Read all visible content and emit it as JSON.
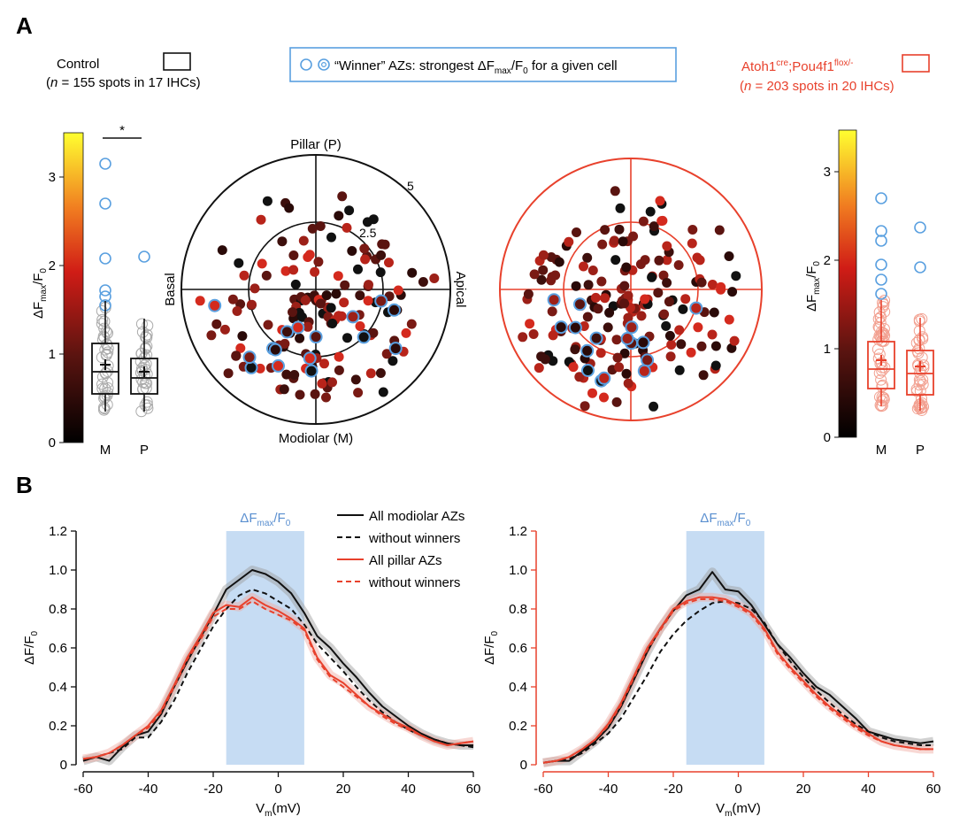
{
  "panel_labels": {
    "a": "A",
    "b": "B"
  },
  "legend": {
    "control_name": "Control",
    "control_n_pre": "(",
    "control_n_italic": "n",
    "control_n_post": " = 155 spots in 17 IHCs)",
    "winner_text_a": "“Winner” AZs: strongest ΔF",
    "winner_sub1": "max",
    "winner_text_b": "/F",
    "winner_sub2": "0",
    "winner_text_c": " for a given cell",
    "mutant_name_a": "Atoh1",
    "mutant_sup1": "cre",
    "mutant_name_b": ";Pou4f1",
    "mutant_sup2": "flox/-",
    "mutant_n_pre": "(",
    "mutant_n_italic": "n",
    "mutant_n_post": " = 203 spots in 20 IHCs)"
  },
  "colors": {
    "control": "#111111",
    "mutant": "#e8412c",
    "winner": "#5aa0e0",
    "shade": "#c6dcf3",
    "control_gray": "#999999",
    "mutant_light": "#f0a090"
  },
  "colorbar": {
    "ticks": [
      "0",
      "1",
      "2",
      "3"
    ],
    "ylabel_a": "ΔF",
    "ylabel_sub": "max",
    "ylabel_b": "/F",
    "ylabel_sub2": "0"
  },
  "polar": {
    "label_top": "Pillar (P)",
    "label_bottom": "Modiolar (M)",
    "label_left": "Basal",
    "label_right": "Apical",
    "ring_inner": "2.5",
    "ring_outer": "5"
  },
  "boxplots": {
    "categories": [
      "M",
      "P"
    ],
    "significance": "*",
    "control": {
      "M": {
        "q1": 0.55,
        "median": 0.8,
        "q3": 1.12,
        "mean": 0.88,
        "whisker_low": 0.35,
        "whisker_high": 1.6
      },
      "P": {
        "q1": 0.55,
        "median": 0.73,
        "q3": 0.95,
        "mean": 0.8,
        "whisker_low": 0.35,
        "whisker_high": 1.4
      },
      "outliers_M": [
        3.15,
        2.7,
        2.08,
        1.72,
        1.65,
        1.55
      ],
      "outliers_P": [
        2.1
      ]
    },
    "mutant": {
      "M": {
        "q1": 0.55,
        "median": 0.77,
        "q3": 1.08,
        "mean": 0.87,
        "whisker_low": 0.35,
        "whisker_high": 1.55
      },
      "P": {
        "q1": 0.48,
        "median": 0.72,
        "q3": 0.98,
        "mean": 0.8,
        "whisker_low": 0.3,
        "whisker_high": 1.35
      },
      "outliers_M": [
        2.7,
        2.33,
        2.22,
        1.95,
        1.78,
        1.62
      ],
      "outliers_P": [
        2.37,
        1.92
      ]
    }
  },
  "chart_data": [
    {
      "type": "line",
      "panel": "B-left (Control)",
      "xlabel_a": "V",
      "xlabel_sub": "m",
      "xlabel_b": "(mV)",
      "ylabel": "ΔF/F",
      "ylabel_sub": "0",
      "xlim": [
        -60,
        60
      ],
      "ylim": [
        0,
        1.2
      ],
      "xticks": [
        -60,
        -40,
        -20,
        0,
        20,
        40,
        60
      ],
      "yticks": [
        0,
        0.2,
        0.4,
        0.6,
        0.8,
        1.0,
        1.2
      ],
      "ytick_labels": [
        "0",
        "0.2",
        "0.4",
        "0.6",
        "0.8",
        "1.0",
        "1.2"
      ],
      "shaded_region": {
        "x0": -16,
        "x1": 8,
        "label_a": "ΔF",
        "label_sub": "max",
        "label_b": "/F",
        "label_sub2": "0"
      },
      "legend_entries": [
        "All modiolar AZs",
        "without winners",
        "All pillar AZs",
        "without winners"
      ],
      "x": [
        -60,
        -56,
        -52,
        -48,
        -44,
        -40,
        -36,
        -32,
        -28,
        -24,
        -20,
        -16,
        -12,
        -8,
        -4,
        0,
        4,
        8,
        12,
        16,
        20,
        24,
        28,
        32,
        36,
        40,
        44,
        48,
        52,
        56,
        60
      ],
      "series": [
        {
          "name": "All modiolar AZs",
          "style": "solid",
          "color": "#111111",
          "values": [
            0.02,
            0.04,
            0.02,
            0.09,
            0.15,
            0.17,
            0.26,
            0.4,
            0.53,
            0.65,
            0.77,
            0.9,
            0.95,
            1.0,
            0.98,
            0.94,
            0.88,
            0.78,
            0.66,
            0.6,
            0.52,
            0.45,
            0.37,
            0.3,
            0.25,
            0.2,
            0.16,
            0.13,
            0.11,
            0.1,
            0.1
          ]
        },
        {
          "name": "without winners",
          "style": "dashed",
          "color": "#111111",
          "values": [
            0.02,
            0.04,
            0.06,
            0.08,
            0.14,
            0.14,
            0.22,
            0.33,
            0.47,
            0.59,
            0.71,
            0.8,
            0.87,
            0.9,
            0.88,
            0.84,
            0.8,
            0.72,
            0.62,
            0.55,
            0.48,
            0.4,
            0.33,
            0.27,
            0.22,
            0.18,
            0.15,
            0.13,
            0.11,
            0.1,
            0.09
          ]
        },
        {
          "name": "All pillar AZs",
          "style": "solid",
          "color": "#e8412c",
          "values": [
            0.03,
            0.04,
            0.06,
            0.1,
            0.15,
            0.2,
            0.28,
            0.41,
            0.55,
            0.66,
            0.78,
            0.82,
            0.81,
            0.86,
            0.82,
            0.79,
            0.75,
            0.7,
            0.55,
            0.46,
            0.42,
            0.36,
            0.3,
            0.26,
            0.22,
            0.19,
            0.15,
            0.12,
            0.1,
            0.11,
            0.12
          ]
        },
        {
          "name": "without winners",
          "style": "dashed",
          "color": "#e8412c",
          "values": [
            0.03,
            0.04,
            0.06,
            0.1,
            0.15,
            0.19,
            0.27,
            0.4,
            0.54,
            0.64,
            0.76,
            0.8,
            0.8,
            0.84,
            0.8,
            0.77,
            0.74,
            0.69,
            0.54,
            0.45,
            0.4,
            0.35,
            0.3,
            0.25,
            0.21,
            0.18,
            0.15,
            0.12,
            0.1,
            0.11,
            0.12
          ]
        }
      ]
    },
    {
      "type": "line",
      "panel": "B-right (Atoh1cre;Pou4f1flox/-)",
      "xlabel_a": "V",
      "xlabel_sub": "m",
      "xlabel_b": "(mV)",
      "ylabel": "ΔF/F",
      "ylabel_sub": "0",
      "xlim": [
        -60,
        60
      ],
      "ylim": [
        0,
        1.2
      ],
      "xticks": [
        -60,
        -40,
        -20,
        0,
        20,
        40,
        60
      ],
      "yticks": [
        0,
        0.2,
        0.4,
        0.6,
        0.8,
        1.0,
        1.2
      ],
      "ytick_labels": [
        "0",
        "0.2",
        "0.4",
        "0.6",
        "0.8",
        "1.0",
        "1.2"
      ],
      "shaded_region": {
        "x0": -16,
        "x1": 8,
        "label_a": "ΔF",
        "label_sub": "max",
        "label_b": "/F",
        "label_sub2": "0"
      },
      "x": [
        -60,
        -56,
        -52,
        -48,
        -44,
        -40,
        -36,
        -32,
        -28,
        -24,
        -20,
        -16,
        -12,
        -8,
        -4,
        0,
        4,
        8,
        12,
        16,
        20,
        24,
        28,
        32,
        36,
        40,
        44,
        48,
        52,
        56,
        60
      ],
      "series": [
        {
          "name": "All modiolar AZs",
          "style": "solid",
          "color": "#111111",
          "values": [
            0.01,
            0.02,
            0.02,
            0.07,
            0.12,
            0.19,
            0.3,
            0.44,
            0.58,
            0.7,
            0.79,
            0.87,
            0.9,
            0.99,
            0.9,
            0.89,
            0.82,
            0.72,
            0.62,
            0.55,
            0.47,
            0.4,
            0.36,
            0.3,
            0.24,
            0.17,
            0.15,
            0.13,
            0.12,
            0.11,
            0.12
          ]
        },
        {
          "name": "without winners",
          "style": "dashed",
          "color": "#111111",
          "values": [
            0.01,
            0.02,
            0.03,
            0.06,
            0.11,
            0.16,
            0.24,
            0.35,
            0.46,
            0.58,
            0.67,
            0.74,
            0.79,
            0.83,
            0.84,
            0.83,
            0.8,
            0.73,
            0.62,
            0.53,
            0.45,
            0.38,
            0.32,
            0.26,
            0.21,
            0.17,
            0.14,
            0.12,
            0.11,
            0.1,
            0.1
          ]
        },
        {
          "name": "All pillar AZs",
          "style": "solid",
          "color": "#e8412c",
          "values": [
            0.01,
            0.02,
            0.04,
            0.08,
            0.13,
            0.21,
            0.32,
            0.46,
            0.6,
            0.7,
            0.8,
            0.84,
            0.86,
            0.86,
            0.85,
            0.82,
            0.78,
            0.7,
            0.58,
            0.5,
            0.43,
            0.36,
            0.3,
            0.25,
            0.2,
            0.16,
            0.12,
            0.1,
            0.09,
            0.08,
            0.08
          ]
        },
        {
          "name": "without winners",
          "style": "dashed",
          "color": "#e8412c",
          "values": [
            0.01,
            0.02,
            0.04,
            0.08,
            0.13,
            0.2,
            0.31,
            0.45,
            0.59,
            0.69,
            0.79,
            0.83,
            0.85,
            0.85,
            0.84,
            0.81,
            0.77,
            0.69,
            0.57,
            0.49,
            0.42,
            0.35,
            0.29,
            0.24,
            0.19,
            0.15,
            0.12,
            0.1,
            0.09,
            0.08,
            0.08
          ]
        }
      ]
    }
  ]
}
